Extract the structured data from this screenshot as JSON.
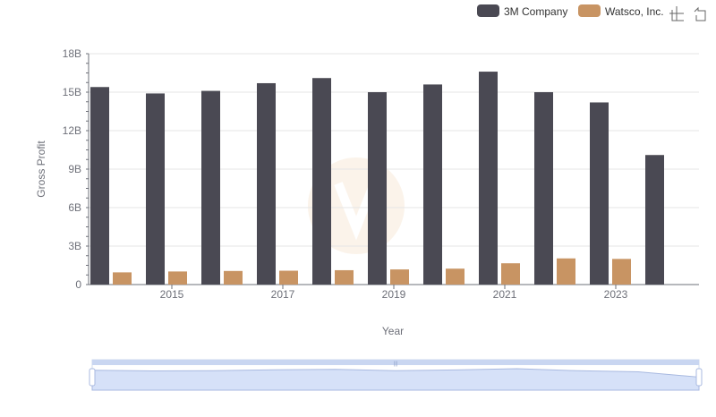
{
  "chart_data": {
    "type": "bar",
    "title": "",
    "xlabel": "Year",
    "ylabel": "Gross Profit",
    "x": [
      2014,
      2015,
      2016,
      2017,
      2018,
      2019,
      2020,
      2021,
      2022,
      2023,
      2024
    ],
    "x_tick_labels": [
      "2015",
      "2017",
      "2019",
      "2021",
      "2023"
    ],
    "y_tick_labels": [
      "0",
      "3B",
      "6B",
      "9B",
      "12B",
      "15B",
      "18B"
    ],
    "ylim": [
      0,
      18000000000
    ],
    "grid": true,
    "legend_position": "top-right",
    "series": [
      {
        "name": "3M Company",
        "color": "#4a4953",
        "values": [
          15400000000,
          14900000000,
          15100000000,
          15700000000,
          16100000000,
          15000000000,
          15600000000,
          16600000000,
          15000000000,
          14200000000,
          10100000000
        ]
      },
      {
        "name": "Watsco, Inc.",
        "color": "#c89463",
        "values": [
          950000000,
          1020000000,
          1060000000,
          1080000000,
          1120000000,
          1180000000,
          1240000000,
          1660000000,
          2040000000,
          2000000000,
          null
        ]
      }
    ]
  },
  "toolbar": {
    "zoom_icon": "data-zoom-icon",
    "restore_icon": "restore-icon"
  },
  "datazoom": {
    "range_start_percent": 0,
    "range_end_percent": 100,
    "fill_color": "#d6e1f8",
    "line_color": "#a8b9e0"
  }
}
